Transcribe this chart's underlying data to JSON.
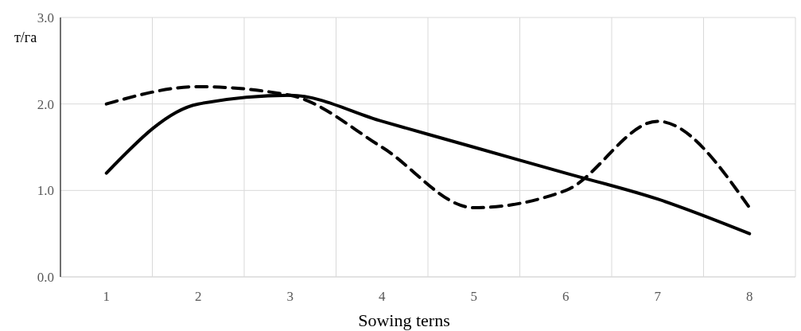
{
  "chart_data": {
    "type": "line",
    "xlabel": "Sowing terns",
    "ylabel": "т/га",
    "categories": [
      "1",
      "2",
      "3",
      "4",
      "5",
      "6",
      "7",
      "8"
    ],
    "series": [
      {
        "color": "#000000",
        "line_style": "solid",
        "values": [
          1.2,
          2.0,
          2.1,
          1.8,
          1.5,
          1.2,
          0.9,
          0.5
        ]
      },
      {
        "color": "#000000",
        "line_style": "dashed",
        "values": [
          2.0,
          2.2,
          2.1,
          1.5,
          0.8,
          1.0,
          1.8,
          0.8
        ]
      }
    ],
    "ylim": [
      0,
      3
    ],
    "yticks": [
      {
        "value": 0,
        "label": "0.0"
      },
      {
        "value": 1,
        "label": "1.0"
      },
      {
        "value": 2,
        "label": "2.0"
      },
      {
        "value": 3,
        "label": "3.0"
      }
    ],
    "grid": true
  }
}
